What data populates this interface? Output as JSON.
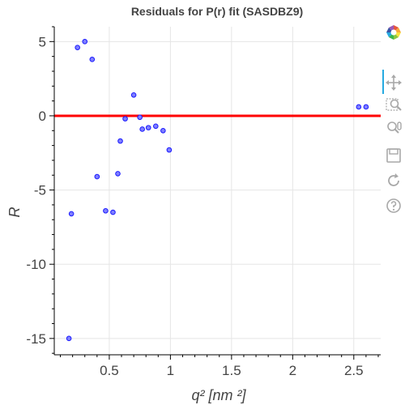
{
  "chart_data": {
    "type": "scatter",
    "title": "Residuals for P(r) fit (SASDBZ9)",
    "xlabel": "q² [nm ²]",
    "ylabel": "R",
    "xlim": [
      0.05,
      2.72
    ],
    "ylim": [
      -16.1,
      6.0
    ],
    "x_ticks": [
      0.5,
      1,
      1.5,
      2,
      2.5
    ],
    "x_tick_labels": [
      "0.5",
      "1",
      "1.5",
      "2",
      "2.5"
    ],
    "y_ticks": [
      5,
      0,
      -5,
      -10,
      -15
    ],
    "y_tick_labels": [
      "5",
      "0",
      "-5",
      "-10",
      "-15"
    ],
    "grid": true,
    "reference_line": {
      "y": 0,
      "color": "#ff0000"
    },
    "marker_fill": "#7f7fff",
    "marker_stroke": "#1a1aff",
    "points": [
      {
        "x": 0.17,
        "y": -15.0
      },
      {
        "x": 0.19,
        "y": -6.6
      },
      {
        "x": 0.24,
        "y": 4.6
      },
      {
        "x": 0.3,
        "y": 5.0
      },
      {
        "x": 0.36,
        "y": 3.8
      },
      {
        "x": 0.4,
        "y": -4.1
      },
      {
        "x": 0.47,
        "y": -6.4
      },
      {
        "x": 0.53,
        "y": -6.5
      },
      {
        "x": 0.57,
        "y": -3.9
      },
      {
        "x": 0.59,
        "y": -1.7
      },
      {
        "x": 0.63,
        "y": -0.2
      },
      {
        "x": 0.7,
        "y": 1.4
      },
      {
        "x": 0.75,
        "y": -0.1
      },
      {
        "x": 0.77,
        "y": -0.9
      },
      {
        "x": 0.82,
        "y": -0.8
      },
      {
        "x": 0.88,
        "y": -0.7
      },
      {
        "x": 0.94,
        "y": -1.0
      },
      {
        "x": 0.99,
        "y": -2.3
      },
      {
        "x": 2.54,
        "y": 0.6
      },
      {
        "x": 2.6,
        "y": 0.6
      }
    ]
  },
  "toolbar": {
    "tools": [
      {
        "icon": "bokeh-logo-icon",
        "active": false
      },
      {
        "icon": "pan-icon",
        "active": true
      },
      {
        "icon": "box-zoom-icon",
        "active": false
      },
      {
        "icon": "wheel-zoom-icon",
        "active": false
      },
      {
        "icon": "save-icon",
        "active": false
      },
      {
        "icon": "reset-icon",
        "active": false
      },
      {
        "icon": "help-icon",
        "active": false
      }
    ],
    "icon_color": "#a8a8a8",
    "active_color": "#26aae1"
  }
}
